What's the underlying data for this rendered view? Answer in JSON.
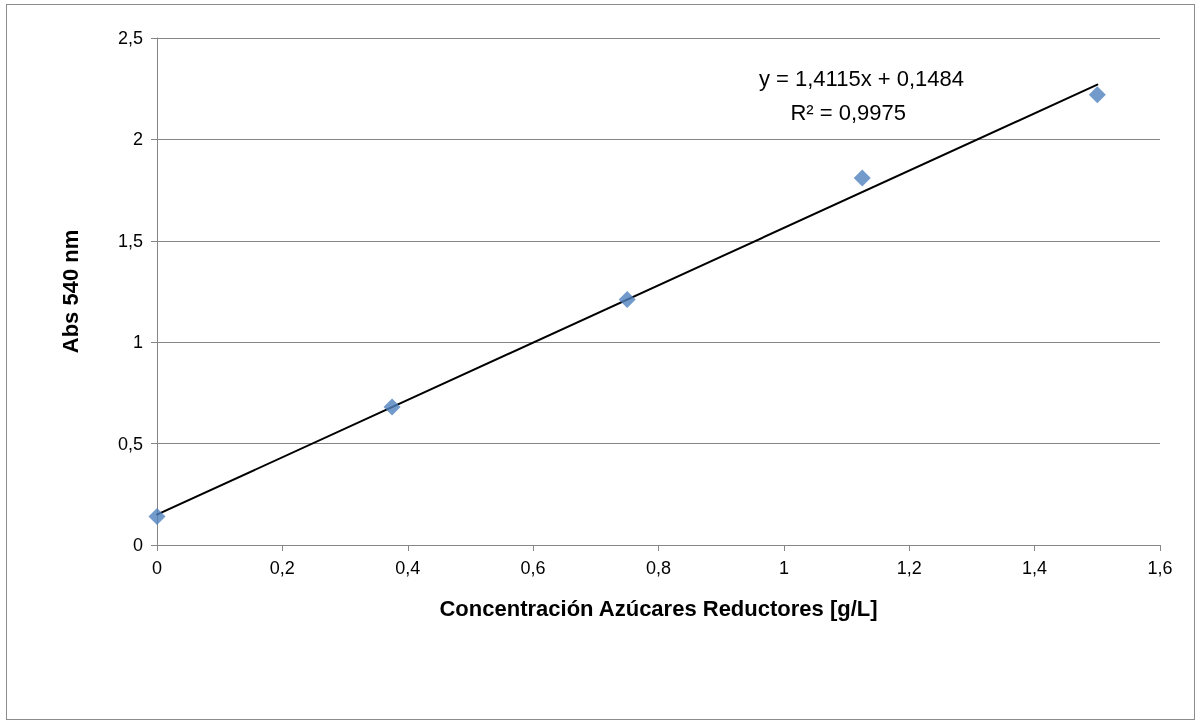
{
  "chart_data": {
    "type": "scatter",
    "xlabel": "Concentración Azúcares Reductores [g/L]",
    "ylabel": "Abs 540 nm",
    "xlim": [
      0,
      1.6
    ],
    "xticks": [
      0,
      {
        "value": 0.2,
        "label": "0,2"
      },
      {
        "value": 0.4,
        "label": "0,4"
      },
      {
        "value": 0.6,
        "label": "0,6"
      },
      {
        "value": 0.8,
        "label": "0,8"
      },
      1,
      {
        "value": 1.2,
        "label": "1,2"
      },
      {
        "value": 1.4,
        "label": "1,4"
      },
      {
        "value": 1.6,
        "label": "1,6"
      }
    ],
    "ylim": [
      0,
      2.5
    ],
    "yticks": [
      0,
      {
        "value": 0.5,
        "label": "0,5"
      },
      1,
      {
        "value": 1.5,
        "label": "1,5"
      },
      2,
      {
        "value": 2.5,
        "label": "2,5"
      }
    ],
    "grid": "y",
    "series": [
      {
        "marker": "diamond",
        "color": "#4f81bd",
        "x": [
          0,
          0.375,
          0.75,
          1.125,
          1.5
        ],
        "values": [
          0.14,
          0.68,
          1.21,
          1.81,
          2.22
        ]
      },
      {
        "type": "line",
        "marker": "none",
        "line_style": "solid",
        "color": "#000000",
        "x": [
          0,
          1.5
        ],
        "values": [
          0.15,
          2.27
        ]
      }
    ],
    "annotations": [
      "y = 1,4115x + 0,1484",
      "R² = 0,9975"
    ]
  }
}
